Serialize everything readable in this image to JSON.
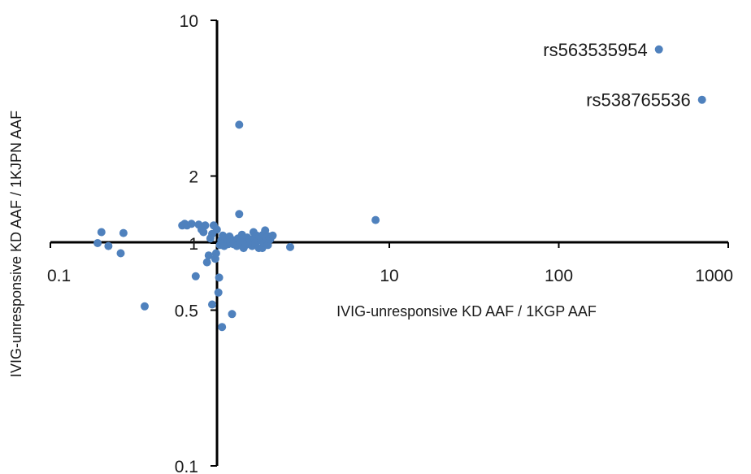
{
  "chart_data": {
    "type": "scatter",
    "title": "",
    "xlabel": "IVIG-unresponsive KD AAF / 1KGP AAF",
    "ylabel": "IVIG-unresponsive KD AAF / 1KJPN AAF",
    "x_scale": "log",
    "y_scale": "log",
    "xlim": [
      0.1,
      1000
    ],
    "ylim": [
      0.1,
      10
    ],
    "x_ticks": [
      0.1,
      1,
      10,
      100,
      1000
    ],
    "x_tick_labels": [
      "0.1",
      "1",
      "10",
      "100",
      "1000"
    ],
    "y_ticks": [
      0.1,
      0.5,
      1,
      2,
      10
    ],
    "y_tick_labels": [
      "0.1",
      "0.5",
      "1",
      "2",
      "10"
    ],
    "grid": false,
    "legend": "none",
    "marker_color": "#4f81bd",
    "series": [
      {
        "points": [
          [
            0.19,
            1.0
          ],
          [
            0.2,
            1.12
          ],
          [
            0.22,
            0.97
          ],
          [
            0.26,
            0.9
          ],
          [
            0.27,
            1.11
          ],
          [
            0.36,
            0.52
          ],
          [
            0.6,
            1.2
          ],
          [
            0.62,
            1.22
          ],
          [
            0.64,
            1.2
          ],
          [
            0.68,
            1.22
          ],
          [
            0.72,
            0.71
          ],
          [
            0.75,
            1.21
          ],
          [
            0.78,
            1.15
          ],
          [
            0.8,
            1.12
          ],
          [
            0.82,
            1.2
          ],
          [
            0.84,
            0.82
          ],
          [
            0.86,
            0.88
          ],
          [
            0.88,
            1.05
          ],
          [
            0.9,
            1.1
          ],
          [
            0.9,
            0.53
          ],
          [
            0.92,
            1.2
          ],
          [
            0.94,
            0.85
          ],
          [
            0.95,
            0.9
          ],
          [
            0.96,
            1.15
          ],
          [
            0.98,
            0.6
          ],
          [
            0.99,
            0.7
          ],
          [
            1.0,
            0.98
          ],
          [
            1.02,
            1.03
          ],
          [
            1.03,
            0.42
          ],
          [
            1.04,
            1.08
          ],
          [
            1.05,
            1.0
          ],
          [
            1.06,
            0.97
          ],
          [
            1.08,
            1.05
          ],
          [
            1.1,
            1.02
          ],
          [
            1.12,
            0.99
          ],
          [
            1.14,
            1.07
          ],
          [
            1.15,
            1.01
          ],
          [
            1.18,
            0.48
          ],
          [
            1.2,
            0.99
          ],
          [
            1.22,
            1.03
          ],
          [
            1.24,
            1.0
          ],
          [
            1.26,
            0.97
          ],
          [
            1.28,
            1.05
          ],
          [
            1.3,
            1.35
          ],
          [
            1.3,
            3.4
          ],
          [
            1.32,
            1.0
          ],
          [
            1.35,
            1.09
          ],
          [
            1.38,
            0.95
          ],
          [
            1.4,
            1.02
          ],
          [
            1.42,
            0.98
          ],
          [
            1.45,
            1.06
          ],
          [
            1.48,
            1.0
          ],
          [
            1.5,
            1.04
          ],
          [
            1.52,
            1.01
          ],
          [
            1.55,
            0.97
          ],
          [
            1.58,
            1.12
          ],
          [
            1.6,
            1.05
          ],
          [
            1.62,
            1.0
          ],
          [
            1.65,
            1.08
          ],
          [
            1.68,
            1.03
          ],
          [
            1.7,
            0.95
          ],
          [
            1.72,
            1.07
          ],
          [
            1.75,
            1.03
          ],
          [
            1.78,
            0.95
          ],
          [
            1.8,
            1.09
          ],
          [
            1.82,
            1.0
          ],
          [
            1.85,
            1.14
          ],
          [
            1.88,
            1.06
          ],
          [
            1.9,
            1.03
          ],
          [
            1.92,
            0.98
          ],
          [
            1.95,
            1.07
          ],
          [
            1.98,
            1.04
          ],
          [
            2.05,
            1.08
          ],
          [
            2.6,
            0.96
          ],
          [
            8.3,
            1.27
          ],
          [
            390,
            7.4
          ],
          [
            700,
            4.4
          ]
        ]
      }
    ],
    "annotations": [
      {
        "text": "rs563535954",
        "x": 390,
        "y": 7.4
      },
      {
        "text": "rs538765536",
        "x": 700,
        "y": 4.4
      }
    ]
  }
}
